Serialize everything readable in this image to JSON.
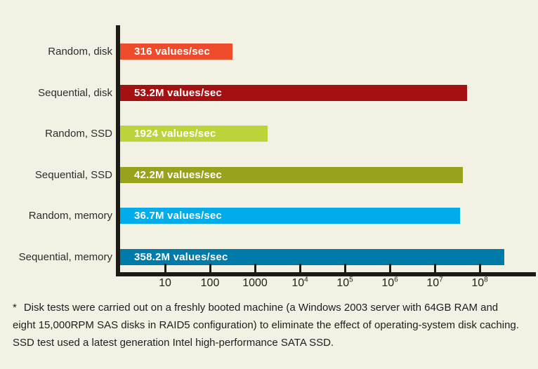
{
  "chart_data": {
    "type": "bar",
    "orientation": "horizontal",
    "x_scale": "log10",
    "title": "",
    "xlabel": "",
    "ylabel": "",
    "xlim": [
      1,
      1000000000
    ],
    "grid": false,
    "legend": "none",
    "x_ticks": [
      "10",
      "100",
      "1000",
      "10^4",
      "10^5",
      "10^6",
      "10^7",
      "10^8"
    ],
    "categories": [
      "Random, disk",
      "Sequential, disk",
      "Random, SSD",
      "Sequential, SSD",
      "Random, memory",
      "Sequential, memory"
    ],
    "values": [
      316,
      53200000,
      1924,
      42200000,
      36700000,
      358200000
    ],
    "bar_labels": [
      "316 values/sec",
      "53.2M values/sec",
      "1924 values/sec",
      "42.2M values/sec",
      "36.7M values/sec",
      "358.2M values/sec"
    ],
    "bar_colors": [
      "#ee4b2b",
      "#a51112",
      "#bcd339",
      "#99a21c",
      "#00ace9",
      "#007aa8"
    ]
  },
  "colors": {
    "background": "#f2f1e3",
    "axis": "#1c1b16",
    "category_text": "#2d2d2d",
    "value_text": "#ffffff",
    "footnote_text": "#1e1e1e"
  },
  "footnote": {
    "marker": "*",
    "lines": [
      "Disk tests were carried out on a freshly booted machine (a Windows 2003 server with 64GB RAM and",
      "eight 15,000RPM SAS disks in RAID5 configuration) to eliminate the effect of operating-system disk caching.",
      "SSD test used a latest generation Intel high-performance SATA SSD."
    ]
  }
}
